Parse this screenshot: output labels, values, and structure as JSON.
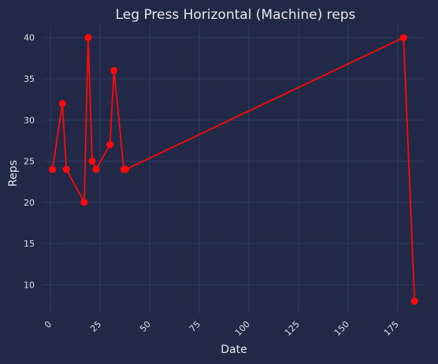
{
  "colors": {
    "background": "#212946",
    "plot_background": "#212946",
    "grid": "#2f3b63",
    "series": "#ff0a0a"
  },
  "chart_data": {
    "type": "line",
    "title": "Leg Press Horizontal (Machine) reps",
    "xlabel": "Date",
    "ylabel": "Reps",
    "xlim": [
      -4,
      189
    ],
    "ylim": [
      6.5,
      41.5
    ],
    "xticks": [
      0,
      25,
      50,
      75,
      100,
      125,
      150,
      175
    ],
    "xtick_labels": [
      "0",
      "25",
      "50",
      "75",
      "100",
      "125",
      "150",
      "175"
    ],
    "xtick_rotation": -45,
    "yticks": [
      10,
      15,
      20,
      25,
      30,
      35,
      40
    ],
    "ytick_labels": [
      "10",
      "15",
      "20",
      "25",
      "30",
      "35",
      "40"
    ],
    "grid": true,
    "legend": "none",
    "series": [
      {
        "x": [
          1,
          6,
          8,
          17,
          19,
          21,
          23,
          30,
          32,
          37,
          38,
          178,
          183.5
        ],
        "y": [
          24,
          32,
          24,
          20,
          40,
          25,
          24,
          27,
          36,
          24,
          24,
          40,
          8
        ],
        "marker": "circle"
      }
    ]
  }
}
